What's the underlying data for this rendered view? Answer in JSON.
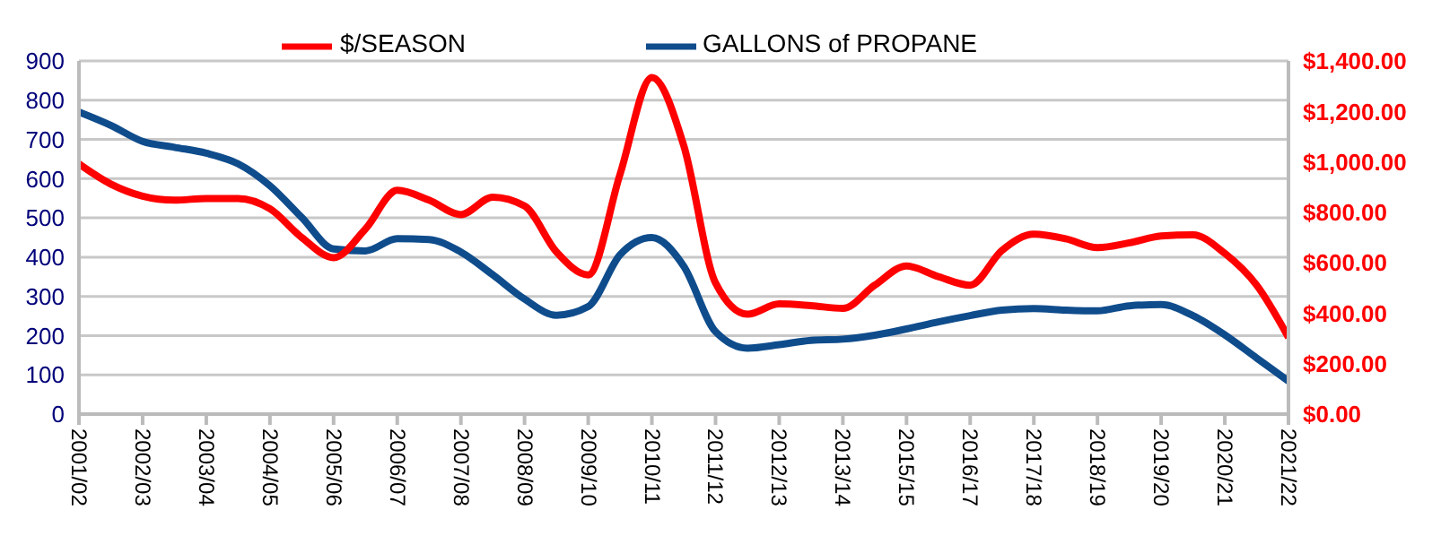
{
  "chart_data": {
    "type": "line",
    "categories": [
      "2001/02",
      null,
      "2002/03",
      null,
      "2003/04",
      null,
      "2004/05",
      null,
      "2005/06",
      null,
      "2006/07",
      null,
      "2007/08",
      null,
      "2008/09",
      null,
      "2009/10",
      null,
      "2010/11",
      null,
      "2011/12",
      null,
      "2012/13",
      null,
      "2013/14",
      null,
      "2015/15",
      null,
      "2016/17",
      null,
      "2017/18",
      null,
      "2018/19",
      null,
      "2019/20",
      null,
      "2020/21",
      null,
      "2021/22"
    ],
    "series": [
      {
        "name": "GALLONS of PROPANE",
        "color": "#0f4c8c",
        "values": [
          770,
          736,
          695,
          680,
          665,
          638,
          582,
          501,
          421,
          416,
          447,
          445,
          413,
          355,
          293,
          252,
          274,
          406,
          450,
          377,
          210,
          168,
          177,
          188,
          191,
          201,
          217,
          235,
          251,
          265,
          269,
          265,
          263,
          276,
          279,
          251,
          202,
          143,
          84
        ]
      },
      {
        "name": "$/SEASON",
        "color": "#ff0000",
        "axis": "y2",
        "values": [
          992,
          912,
          864,
          848,
          855,
          855,
          814,
          700,
          620,
          734,
          887,
          848,
          791,
          860,
          825,
          643,
          552,
          951,
          1334,
          1065,
          520,
          396,
          437,
          430,
          419,
          511,
          587,
          545,
          511,
          649,
          713,
          695,
          660,
          679,
          706,
          711,
          637,
          511,
          304
        ]
      }
    ],
    "ylim": [
      0,
      900
    ],
    "yticks": [
      0,
      100,
      200,
      300,
      400,
      500,
      600,
      700,
      800,
      900
    ],
    "y2lim": [
      0,
      1400
    ],
    "y2ticks": [
      {
        "value": 0,
        "label": "$0.00"
      },
      {
        "value": 200,
        "label": "$200.00"
      },
      {
        "value": 400,
        "label": "$400.00"
      },
      {
        "value": 600,
        "label": "$600.00"
      },
      {
        "value": 800,
        "label": "$800.00"
      },
      {
        "value": 1000,
        "label": "$1,000.00"
      },
      {
        "value": 1200,
        "label": "$1,200.00"
      },
      {
        "value": 1400,
        "label": "$1,400.00"
      }
    ],
    "grid": "y",
    "legend": "top",
    "marker": "none",
    "line_style": "solid"
  }
}
